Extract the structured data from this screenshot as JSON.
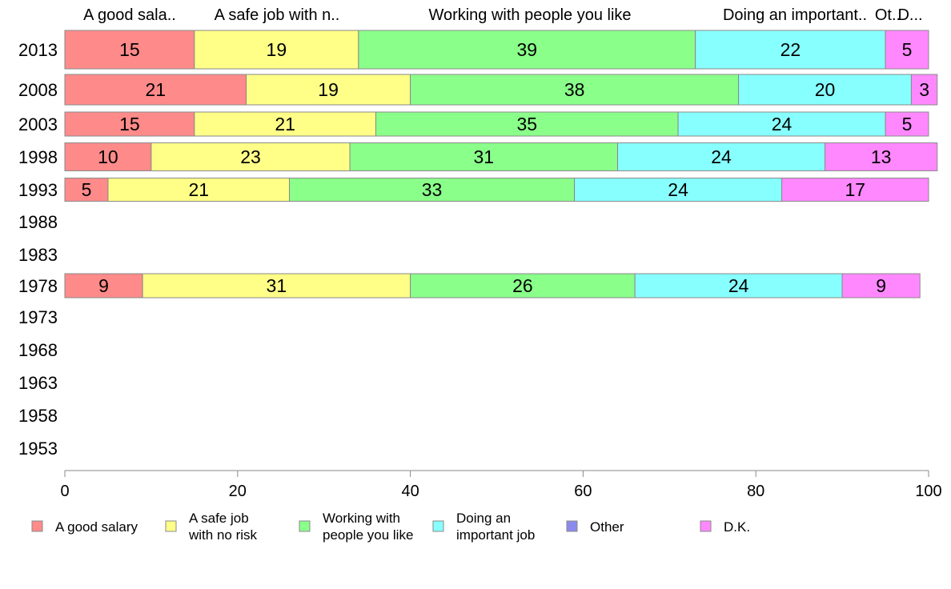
{
  "chart_data": {
    "type": "bar",
    "orientation": "horizontal",
    "stacked": true,
    "categories": [
      "2013",
      "2008",
      "2003",
      "1998",
      "1993",
      "1988",
      "1983",
      "1978",
      "1973",
      "1968",
      "1963",
      "1958",
      "1953"
    ],
    "series": [
      {
        "name": "A good salary",
        "header": "A good sala..",
        "color": "#ff8a8a",
        "values": [
          15,
          21,
          15,
          10,
          5,
          null,
          null,
          9,
          null,
          null,
          null,
          null,
          null
        ]
      },
      {
        "name": "A safe job with no risk",
        "header": "A safe job with n..",
        "color": "#ffff88",
        "values": [
          19,
          19,
          21,
          23,
          21,
          null,
          null,
          31,
          null,
          null,
          null,
          null,
          null
        ]
      },
      {
        "name": "Working with people you like",
        "header": "Working with people you like",
        "color": "#8aff8a",
        "values": [
          39,
          38,
          35,
          31,
          33,
          null,
          null,
          26,
          null,
          null,
          null,
          null,
          null
        ]
      },
      {
        "name": "Doing an important job",
        "header": "Doing an important..",
        "color": "#88ffff",
        "values": [
          22,
          20,
          24,
          24,
          24,
          null,
          null,
          24,
          null,
          null,
          null,
          null,
          null
        ]
      },
      {
        "name": "Other",
        "header": "Ot..",
        "color": "#8a8aee",
        "values": [
          0,
          0,
          0,
          0,
          0,
          null,
          null,
          0,
          null,
          null,
          null,
          null,
          null
        ]
      },
      {
        "name": "D.K.",
        "header": "D...",
        "color": "#ff88ff",
        "values": [
          5,
          3,
          5,
          13,
          17,
          null,
          null,
          9,
          null,
          null,
          null,
          null,
          null
        ]
      }
    ],
    "xlim": [
      0,
      100
    ],
    "xticks": [
      0,
      20,
      40,
      60,
      80,
      100
    ],
    "grid": false,
    "legend": {
      "placement": "bottom",
      "entries": [
        {
          "lines": [
            "A good salary"
          ],
          "color": "#ff8a8a"
        },
        {
          "lines": [
            "A safe job",
            "with no risk"
          ],
          "color": "#ffff88"
        },
        {
          "lines": [
            "Working with",
            "people you like"
          ],
          "color": "#8aff8a"
        },
        {
          "lines": [
            "Doing an",
            "important job"
          ],
          "color": "#88ffff"
        },
        {
          "lines": [
            "Other"
          ],
          "color": "#8a8aee"
        },
        {
          "lines": [
            "D.K."
          ],
          "color": "#ff88ff"
        }
      ]
    }
  }
}
